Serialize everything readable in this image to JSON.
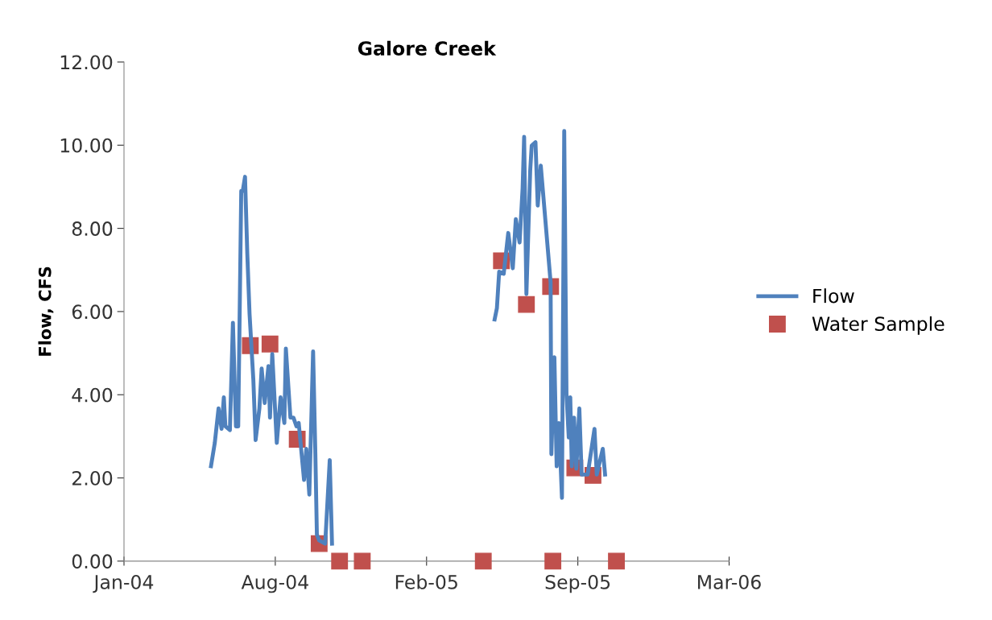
{
  "chart_data": {
    "type": "line",
    "title": "Galore Creek",
    "ylabel": "Flow, CFS",
    "xlim": [
      "2004-01-20",
      "2006-03-30"
    ],
    "xticks": [
      {
        "value": "2004-01-20",
        "label": "Jan-04"
      },
      {
        "value": "2004-08-07",
        "label": "Aug-04"
      },
      {
        "value": "2005-02-23",
        "label": "Feb-05"
      },
      {
        "value": "2005-09-11",
        "label": "Sep-05"
      },
      {
        "value": "2006-03-30",
        "label": "Mar-06"
      }
    ],
    "ylim": [
      0,
      12
    ],
    "yticks": [
      {
        "value": 0,
        "label": "0.00"
      },
      {
        "value": 2,
        "label": "2.00"
      },
      {
        "value": 4,
        "label": "4.00"
      },
      {
        "value": 6,
        "label": "6.00"
      },
      {
        "value": 8,
        "label": "8.00"
      },
      {
        "value": 10,
        "label": "10.00"
      },
      {
        "value": 12,
        "label": "12.00"
      }
    ],
    "grid": false,
    "legend": "right",
    "series": [
      {
        "name": "Flow",
        "type": "line",
        "color": "#4f81bd",
        "marker": "none",
        "line_style": "solid",
        "x": [
          "2004-05-14",
          "2004-05-19",
          "2004-05-24",
          "2004-05-28",
          "2004-05-31",
          "2004-06-02",
          "2004-06-08",
          "2004-06-12",
          "2004-06-16",
          "2004-06-19",
          "2004-06-23",
          "2004-06-25",
          "2004-06-28",
          "2004-07-01",
          "2004-07-04",
          "2004-07-09",
          "2004-07-12",
          "2004-07-17",
          "2004-07-20",
          "2004-07-24",
          "2004-07-29",
          "2004-07-31",
          "2004-08-03",
          "2004-08-09",
          "2004-08-14",
          "2004-08-19",
          "2004-08-21",
          "2004-08-27",
          "2004-08-31",
          "2004-09-04",
          "2004-09-07",
          "2004-09-14",
          "2004-09-17",
          "2004-09-21",
          "2004-09-26",
          "2004-09-29",
          "2004-10-01",
          "2004-10-04",
          "2004-10-12",
          "2004-10-18",
          "2004-10-21",
          "2005-01-15",
          "2005-05-24",
          "2005-05-27",
          "2005-05-30",
          "2005-06-05",
          "2005-06-11",
          "2005-06-17",
          "2005-06-21",
          "2005-06-26",
          "2005-06-30",
          "2005-07-02",
          "2005-07-05",
          "2005-07-10",
          "2005-07-12",
          "2005-07-17",
          "2005-07-20",
          "2005-07-24",
          "2005-08-06",
          "2005-08-07",
          "2005-08-11",
          "2005-08-14",
          "2005-08-17",
          "2005-08-21",
          "2005-08-24",
          "2005-08-27",
          "2005-08-30",
          "2005-09-01",
          "2005-09-03",
          "2005-09-06",
          "2005-09-09",
          "2005-09-13",
          "2005-09-16",
          "2005-09-24",
          "2005-10-03",
          "2005-10-06",
          "2005-10-14",
          "2005-10-17"
        ],
        "values": [
          2.28,
          2.84,
          3.67,
          3.18,
          3.94,
          3.24,
          3.15,
          5.73,
          3.24,
          3.24,
          8.9,
          8.9,
          9.24,
          7.39,
          5.94,
          4.36,
          2.91,
          3.67,
          4.63,
          3.8,
          4.69,
          3.45,
          4.98,
          2.84,
          3.94,
          3.32,
          5.11,
          3.45,
          3.45,
          3.24,
          3.32,
          1.95,
          2.7,
          1.6,
          5.04,
          2.57,
          0.64,
          0.5,
          0.42,
          2.43,
          0.42,
          null,
          5.81,
          6.08,
          6.96,
          6.91,
          7.89,
          7.04,
          8.22,
          7.66,
          8.97,
          10.2,
          6.42,
          9.38,
          9.99,
          10.07,
          8.55,
          9.51,
          6.7,
          2.57,
          4.9,
          2.28,
          3.32,
          1.52,
          10.34,
          4.01,
          2.97,
          3.94,
          2.28,
          3.45,
          2.22,
          3.67,
          2.08,
          2.08,
          3.18,
          2.08,
          2.7,
          2.08
        ]
      },
      {
        "name": "Water Sample",
        "type": "scatter",
        "color": "#c0504d",
        "marker": "square",
        "x": [
          "2004-07-05",
          "2004-07-31",
          "2004-09-05",
          "2004-10-04",
          "2004-10-31",
          "2004-11-30",
          "2005-05-09",
          "2005-06-02",
          "2005-07-05",
          "2005-08-06",
          "2005-08-09",
          "2005-09-07",
          "2005-10-01",
          "2005-11-01"
        ],
        "values": [
          5.18,
          5.22,
          2.93,
          0.42,
          0,
          0,
          0,
          7.22,
          6.17,
          6.6,
          0,
          2.24,
          2.06,
          0
        ]
      }
    ]
  }
}
